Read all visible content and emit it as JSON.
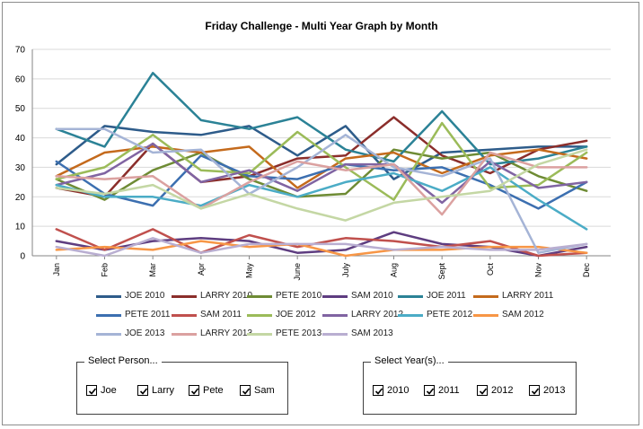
{
  "chart_data": {
    "type": "line",
    "title": "Friday Challenge - Multi Year Graph by Month",
    "xlabel": "",
    "ylabel": "",
    "categories": [
      "Jan",
      "Feb",
      "Mar",
      "Apr",
      "May",
      "June",
      "July",
      "Aug",
      "Sept",
      "Oct",
      "Nov",
      "Dec"
    ],
    "ylim": [
      0,
      70
    ],
    "yticks": [
      0,
      10,
      20,
      30,
      40,
      50,
      60,
      70
    ],
    "grid": true,
    "legend_position": "bottom",
    "series": [
      {
        "name": "JOE 2010",
        "color": "#2e5c8a",
        "values": [
          31,
          44,
          42,
          41,
          44,
          34,
          44,
          26,
          35,
          36,
          37,
          37
        ]
      },
      {
        "name": "LARRY 2010",
        "color": "#8b2e2b",
        "values": [
          23,
          20,
          38,
          25,
          27,
          33,
          34,
          47,
          34,
          28,
          36,
          39
        ]
      },
      {
        "name": "PETE 2010",
        "color": "#6e8b34",
        "values": [
          26,
          19,
          29,
          35,
          26,
          20,
          21,
          36,
          33,
          35,
          27,
          22
        ]
      },
      {
        "name": "SAM 2010",
        "color": "#5e3d80",
        "values": [
          5,
          2,
          5,
          6,
          5,
          1,
          2,
          8,
          4,
          3,
          0,
          3
        ]
      },
      {
        "name": "JOE 2011",
        "color": "#2b8296",
        "values": [
          43,
          37,
          62,
          46,
          43,
          47,
          36,
          32,
          49,
          31,
          33,
          37
        ]
      },
      {
        "name": "LARRY 2011",
        "color": "#c46a1c",
        "values": [
          27,
          35,
          37,
          35,
          37,
          23,
          33,
          35,
          28,
          34,
          36,
          33
        ]
      },
      {
        "name": "PETE 2011",
        "color": "#3c6fb0",
        "values": [
          32,
          21,
          17,
          34,
          27,
          26,
          31,
          29,
          30,
          24,
          16,
          25
        ]
      },
      {
        "name": "SAM 2011",
        "color": "#c0504d",
        "values": [
          9,
          2,
          9,
          1,
          7,
          3,
          6,
          5,
          3,
          5,
          0,
          1
        ]
      },
      {
        "name": "JOE 2012",
        "color": "#9bbb59",
        "values": [
          26,
          30,
          41,
          29,
          28,
          42,
          30,
          19,
          45,
          23,
          24,
          35
        ]
      },
      {
        "name": "LARRY 2012",
        "color": "#8064a2",
        "values": [
          24,
          28,
          38,
          25,
          29,
          22,
          31,
          31,
          18,
          32,
          23,
          25
        ]
      },
      {
        "name": "PETE 2012",
        "color": "#4bacc6",
        "values": [
          24,
          20,
          20,
          17,
          24,
          20,
          25,
          28,
          22,
          30,
          19,
          9
        ]
      },
      {
        "name": "SAM 2012",
        "color": "#f79646",
        "values": [
          2,
          3,
          2,
          5,
          3,
          4,
          0,
          2,
          2,
          3,
          3,
          1
        ]
      },
      {
        "name": "JOE 2013",
        "color": "#a5b4d6",
        "values": [
          43,
          43,
          35,
          36,
          21,
          30,
          41,
          30,
          27,
          33,
          1,
          4
        ]
      },
      {
        "name": "LARRY 2013",
        "color": "#dba1a0",
        "values": [
          27,
          26,
          27,
          16,
          25,
          32,
          29,
          31,
          14,
          35,
          30,
          30
        ]
      },
      {
        "name": "PETE 2013",
        "color": "#c4d7a4",
        "values": [
          23,
          21,
          24,
          16,
          21,
          16,
          12,
          18,
          20,
          22,
          31,
          36
        ]
      },
      {
        "name": "SAM 2013",
        "color": "#b9aed1",
        "values": [
          3,
          0,
          6,
          1,
          4,
          4,
          4,
          2,
          3,
          2,
          2,
          4
        ]
      }
    ]
  },
  "controls": {
    "person_group_label": "Select Person...",
    "year_group_label": "Select Year(s)...",
    "persons": [
      {
        "label": "Joe",
        "checked": true
      },
      {
        "label": "Larry",
        "checked": true
      },
      {
        "label": "Pete",
        "checked": true
      },
      {
        "label": "Sam",
        "checked": true
      }
    ],
    "years": [
      {
        "label": "2010",
        "checked": true
      },
      {
        "label": "2011",
        "checked": true
      },
      {
        "label": "2012",
        "checked": true
      },
      {
        "label": "2013",
        "checked": true
      }
    ]
  }
}
